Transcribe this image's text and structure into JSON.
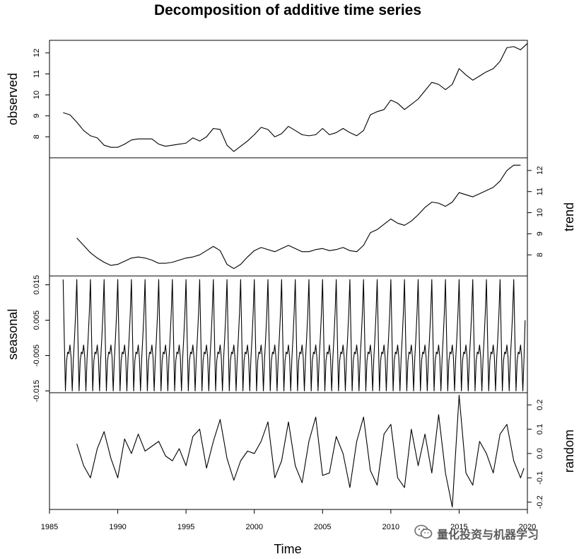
{
  "chart_data": {
    "type": "line",
    "title": "Decomposition of additive time series",
    "xlabel": "Time",
    "xlim": [
      1985,
      2020
    ],
    "xticks": [
      "1985",
      "1990",
      "1995",
      "2000",
      "2005",
      "2010",
      "2015",
      "2020"
    ],
    "panels": [
      {
        "name": "observed",
        "axis_side": "left",
        "ylim": [
          7.0,
          12.6
        ],
        "yticks": [
          "8",
          "9",
          "10",
          "11",
          "12"
        ],
        "points": [
          [
            1986.0,
            9.15
          ],
          [
            1986.5,
            9.05
          ],
          [
            1987.0,
            8.7
          ],
          [
            1987.5,
            8.3
          ],
          [
            1988.0,
            8.05
          ],
          [
            1988.5,
            7.95
          ],
          [
            1989.0,
            7.6
          ],
          [
            1989.5,
            7.5
          ],
          [
            1990.0,
            7.5
          ],
          [
            1990.5,
            7.65
          ],
          [
            1991.0,
            7.85
          ],
          [
            1991.5,
            7.9
          ],
          [
            1992.0,
            7.9
          ],
          [
            1992.5,
            7.9
          ],
          [
            1993.0,
            7.65
          ],
          [
            1993.5,
            7.55
          ],
          [
            1994.0,
            7.6
          ],
          [
            1994.5,
            7.65
          ],
          [
            1995.0,
            7.7
          ],
          [
            1995.5,
            7.95
          ],
          [
            1996.0,
            7.8
          ],
          [
            1996.5,
            8.0
          ],
          [
            1997.0,
            8.4
          ],
          [
            1997.5,
            8.35
          ],
          [
            1998.0,
            7.6
          ],
          [
            1998.5,
            7.3
          ],
          [
            1999.0,
            7.55
          ],
          [
            1999.5,
            7.8
          ],
          [
            2000.0,
            8.1
          ],
          [
            2000.5,
            8.45
          ],
          [
            2001.0,
            8.35
          ],
          [
            2001.5,
            8.0
          ],
          [
            2002.0,
            8.15
          ],
          [
            2002.5,
            8.5
          ],
          [
            2003.0,
            8.3
          ],
          [
            2003.5,
            8.1
          ],
          [
            2004.0,
            8.05
          ],
          [
            2004.5,
            8.1
          ],
          [
            2005.0,
            8.4
          ],
          [
            2005.5,
            8.1
          ],
          [
            2006.0,
            8.2
          ],
          [
            2006.5,
            8.4
          ],
          [
            2007.0,
            8.2
          ],
          [
            2007.5,
            8.05
          ],
          [
            2008.0,
            8.3
          ],
          [
            2008.5,
            9.05
          ],
          [
            2009.0,
            9.2
          ],
          [
            2009.5,
            9.3
          ],
          [
            2010.0,
            9.75
          ],
          [
            2010.5,
            9.6
          ],
          [
            2011.0,
            9.3
          ],
          [
            2011.5,
            9.55
          ],
          [
            2012.0,
            9.8
          ],
          [
            2012.5,
            10.2
          ],
          [
            2013.0,
            10.6
          ],
          [
            2013.5,
            10.5
          ],
          [
            2014.0,
            10.25
          ],
          [
            2014.5,
            10.5
          ],
          [
            2015.0,
            11.25
          ],
          [
            2015.5,
            10.95
          ],
          [
            2016.0,
            10.7
          ],
          [
            2016.5,
            10.9
          ],
          [
            2017.0,
            11.1
          ],
          [
            2017.5,
            11.25
          ],
          [
            2018.0,
            11.6
          ],
          [
            2018.5,
            12.25
          ],
          [
            2019.0,
            12.3
          ],
          [
            2019.5,
            12.15
          ],
          [
            2020.0,
            12.45
          ]
        ]
      },
      {
        "name": "trend",
        "axis_side": "right",
        "ylim": [
          7.0,
          12.6
        ],
        "yticks": [
          "8",
          "9",
          "10",
          "11",
          "12"
        ],
        "points": [
          [
            1987.0,
            8.8
          ],
          [
            1987.5,
            8.45
          ],
          [
            1988.0,
            8.1
          ],
          [
            1988.5,
            7.85
          ],
          [
            1989.0,
            7.65
          ],
          [
            1989.5,
            7.5
          ],
          [
            1990.0,
            7.55
          ],
          [
            1990.5,
            7.7
          ],
          [
            1991.0,
            7.85
          ],
          [
            1991.5,
            7.9
          ],
          [
            1992.0,
            7.85
          ],
          [
            1992.5,
            7.75
          ],
          [
            1993.0,
            7.6
          ],
          [
            1993.5,
            7.6
          ],
          [
            1994.0,
            7.65
          ],
          [
            1994.5,
            7.75
          ],
          [
            1995.0,
            7.85
          ],
          [
            1995.5,
            7.9
          ],
          [
            1996.0,
            8.0
          ],
          [
            1996.5,
            8.2
          ],
          [
            1997.0,
            8.4
          ],
          [
            1997.5,
            8.2
          ],
          [
            1998.0,
            7.55
          ],
          [
            1998.5,
            7.35
          ],
          [
            1999.0,
            7.55
          ],
          [
            1999.5,
            7.9
          ],
          [
            2000.0,
            8.2
          ],
          [
            2000.5,
            8.35
          ],
          [
            2001.0,
            8.25
          ],
          [
            2001.5,
            8.15
          ],
          [
            2002.0,
            8.3
          ],
          [
            2002.5,
            8.45
          ],
          [
            2003.0,
            8.3
          ],
          [
            2003.5,
            8.15
          ],
          [
            2004.0,
            8.15
          ],
          [
            2004.5,
            8.25
          ],
          [
            2005.0,
            8.3
          ],
          [
            2005.5,
            8.2
          ],
          [
            2006.0,
            8.25
          ],
          [
            2006.5,
            8.35
          ],
          [
            2007.0,
            8.2
          ],
          [
            2007.5,
            8.15
          ],
          [
            2008.0,
            8.45
          ],
          [
            2008.5,
            9.05
          ],
          [
            2009.0,
            9.2
          ],
          [
            2009.5,
            9.45
          ],
          [
            2010.0,
            9.7
          ],
          [
            2010.5,
            9.5
          ],
          [
            2011.0,
            9.4
          ],
          [
            2011.5,
            9.6
          ],
          [
            2012.0,
            9.9
          ],
          [
            2012.5,
            10.25
          ],
          [
            2013.0,
            10.5
          ],
          [
            2013.5,
            10.45
          ],
          [
            2014.0,
            10.3
          ],
          [
            2014.5,
            10.5
          ],
          [
            2015.0,
            10.95
          ],
          [
            2015.5,
            10.85
          ],
          [
            2016.0,
            10.75
          ],
          [
            2016.5,
            10.9
          ],
          [
            2017.0,
            11.05
          ],
          [
            2017.5,
            11.2
          ],
          [
            2018.0,
            11.5
          ],
          [
            2018.5,
            12.0
          ],
          [
            2019.0,
            12.25
          ],
          [
            2019.5,
            12.25
          ]
        ]
      },
      {
        "name": "seasonal",
        "axis_side": "left",
        "ylim": [
          -0.0155,
          0.0175
        ],
        "yticks": [
          "-0.015",
          "-0.005",
          "0.005",
          "0.015"
        ],
        "period_start": 1986.0,
        "period_end": 2019.75,
        "cycle": [
          0.0165,
          0.0,
          -0.015,
          -0.0065,
          -0.004,
          -0.0045,
          -0.002,
          -0.0055,
          -0.015,
          -0.006,
          0.0,
          0.007
        ],
        "end_value": 0.005
      },
      {
        "name": "random",
        "axis_side": "right",
        "ylim": [
          -0.23,
          0.25
        ],
        "yticks": [
          "-0.2",
          "-0.1",
          "0.0",
          "0.1",
          "0.2"
        ],
        "points": [
          [
            1987.0,
            0.04
          ],
          [
            1987.5,
            -0.05
          ],
          [
            1988.0,
            -0.1
          ],
          [
            1988.5,
            0.02
          ],
          [
            1989.0,
            0.09
          ],
          [
            1989.5,
            -0.02
          ],
          [
            1990.0,
            -0.1
          ],
          [
            1990.5,
            0.06
          ],
          [
            1991.0,
            0.0
          ],
          [
            1991.5,
            0.08
          ],
          [
            1992.0,
            0.01
          ],
          [
            1992.5,
            0.03
          ],
          [
            1993.0,
            0.05
          ],
          [
            1993.5,
            -0.01
          ],
          [
            1994.0,
            -0.03
          ],
          [
            1994.5,
            0.02
          ],
          [
            1995.0,
            -0.05
          ],
          [
            1995.5,
            0.07
          ],
          [
            1996.0,
            0.1
          ],
          [
            1996.5,
            -0.06
          ],
          [
            1997.0,
            0.05
          ],
          [
            1997.5,
            0.14
          ],
          [
            1998.0,
            -0.02
          ],
          [
            1998.5,
            -0.11
          ],
          [
            1999.0,
            -0.03
          ],
          [
            1999.5,
            0.01
          ],
          [
            2000.0,
            0.0
          ],
          [
            2000.5,
            0.05
          ],
          [
            2001.0,
            0.13
          ],
          [
            2001.5,
            -0.1
          ],
          [
            2002.0,
            -0.03
          ],
          [
            2002.5,
            0.13
          ],
          [
            2003.0,
            -0.05
          ],
          [
            2003.5,
            -0.12
          ],
          [
            2004.0,
            0.05
          ],
          [
            2004.5,
            0.15
          ],
          [
            2005.0,
            -0.09
          ],
          [
            2005.5,
            -0.08
          ],
          [
            2006.0,
            0.07
          ],
          [
            2006.5,
            0.0
          ],
          [
            2007.0,
            -0.14
          ],
          [
            2007.5,
            0.05
          ],
          [
            2008.0,
            0.15
          ],
          [
            2008.5,
            -0.07
          ],
          [
            2009.0,
            -0.13
          ],
          [
            2009.5,
            0.08
          ],
          [
            2010.0,
            0.12
          ],
          [
            2010.5,
            -0.1
          ],
          [
            2011.0,
            -0.14
          ],
          [
            2011.5,
            0.1
          ],
          [
            2012.0,
            -0.05
          ],
          [
            2012.5,
            0.08
          ],
          [
            2013.0,
            -0.08
          ],
          [
            2013.5,
            0.16
          ],
          [
            2014.0,
            -0.08
          ],
          [
            2014.5,
            -0.22
          ],
          [
            2015.0,
            0.24
          ],
          [
            2015.5,
            -0.08
          ],
          [
            2016.0,
            -0.13
          ],
          [
            2016.5,
            0.05
          ],
          [
            2017.0,
            0.0
          ],
          [
            2017.5,
            -0.08
          ],
          [
            2018.0,
            0.08
          ],
          [
            2018.5,
            0.12
          ],
          [
            2019.0,
            -0.03
          ],
          [
            2019.5,
            -0.1
          ],
          [
            2019.75,
            -0.06
          ]
        ]
      }
    ]
  },
  "watermark": {
    "text": "量化投资与机器学习",
    "icon": "wechat-icon",
    "color": "#4a4a4a"
  }
}
